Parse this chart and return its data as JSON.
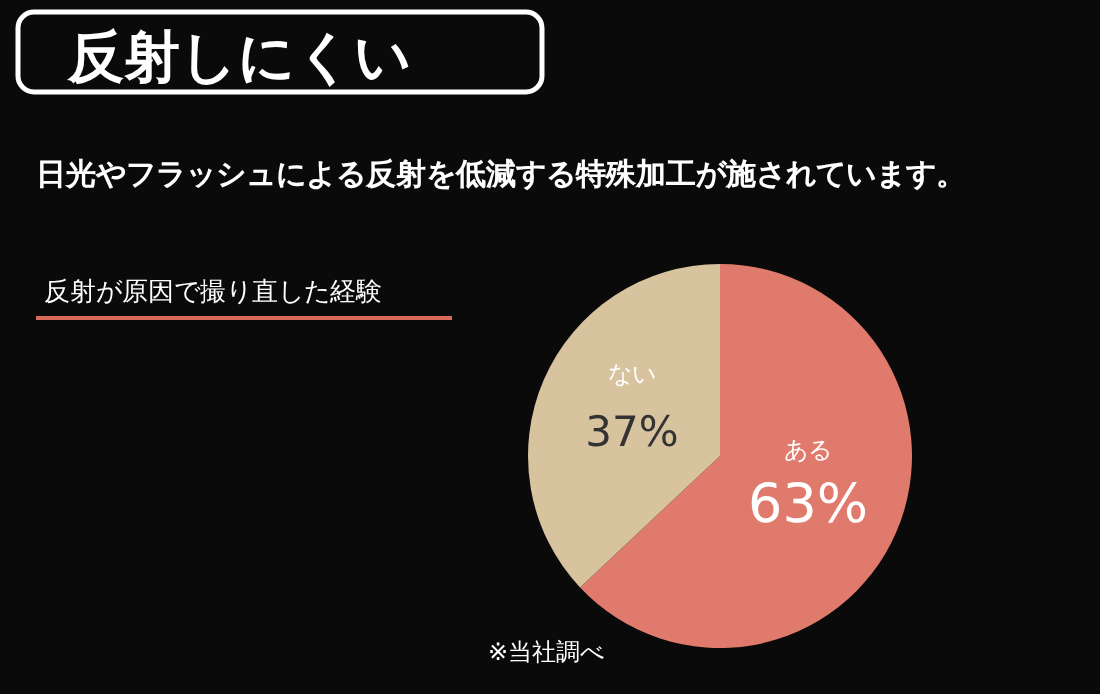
{
  "chart_data": {
    "type": "pie",
    "title": "反射しにくい",
    "subtitle": "日光やフラッシュによる反射を低減する特殊加工が施されています。",
    "annotations": [
      "反射が原因で撮り直した経験",
      "※当社調べ"
    ],
    "categories": [
      "ある",
      "ない"
    ],
    "values": [
      63,
      37
    ],
    "colors": [
      "#e07a6c",
      "#d8c39f"
    ],
    "value_labels": [
      "63%",
      "37%"
    ]
  }
}
